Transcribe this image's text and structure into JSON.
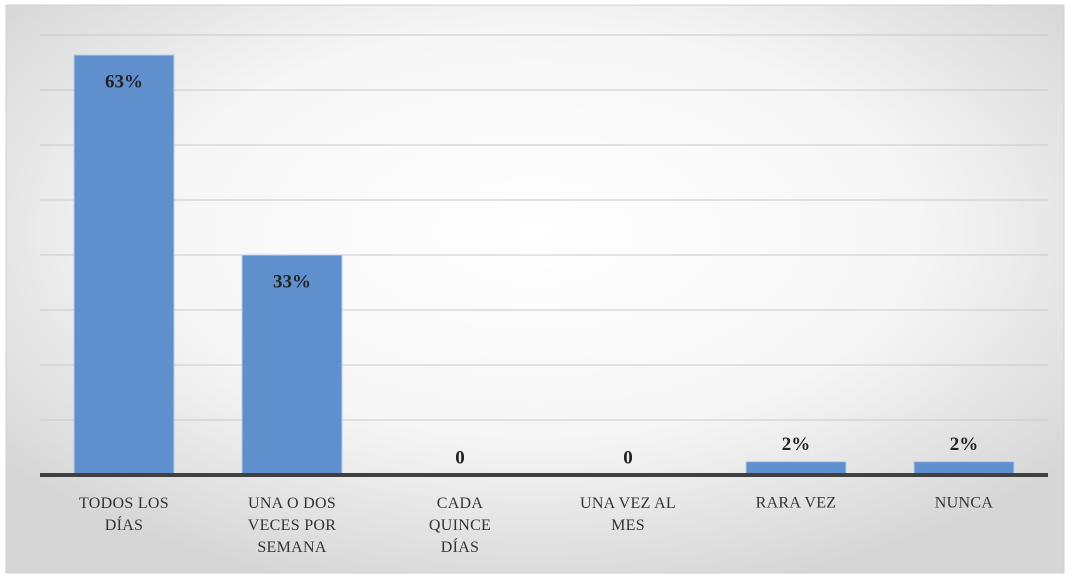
{
  "chart_data": {
    "type": "bar",
    "categories": [
      "TODOS LOS DÍAS",
      "UNA O DOS VECES POR SEMANA",
      "CADA QUINCE DÍAS",
      "UNA VEZ AL MES",
      "RARA VEZ",
      "NUNCA"
    ],
    "values": [
      63,
      33,
      0,
      0,
      2,
      2
    ],
    "value_labels": [
      "63%",
      "33%",
      "0",
      "0",
      "2%",
      "2%"
    ],
    "color": "#5f8fcc",
    "ylim": [
      0,
      66
    ],
    "yticks": [
      0,
      8.25,
      16.5,
      24.75,
      33,
      41.25,
      49.5,
      57.75,
      66
    ],
    "grid": true
  }
}
